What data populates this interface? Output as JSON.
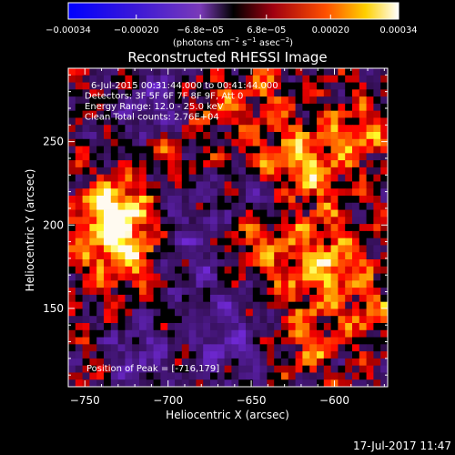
{
  "chart_data": {
    "type": "heatmap",
    "title": "Reconstructed RHESSI Image",
    "xlabel": "Heliocentric X (arcsec)",
    "ylabel": "Heliocentric Y (arcsec)",
    "xlim": [
      -760,
      -568
    ],
    "ylim": [
      103,
      294
    ],
    "x_ticks": [
      -750,
      -700,
      -650,
      -600
    ],
    "y_ticks": [
      150,
      200,
      250
    ],
    "x_tick_labels": [
      "−750",
      "−700",
      "−650",
      "−600"
    ],
    "y_tick_labels": [
      "150",
      "200",
      "250"
    ],
    "colorbar": {
      "range": [
        -0.00034,
        0.00034
      ],
      "ticks": [
        -0.00034,
        -0.0002,
        -6.8e-05,
        6.8e-05,
        0.0002,
        0.00034
      ],
      "tick_labels": [
        "−0.00034",
        "−0.00020",
        "−6.8e−05",
        "6.8e−05",
        "0.00020",
        "0.00034"
      ],
      "label_prefix": "(photons cm",
      "label_exp1": "−2",
      "label_mid": " s",
      "label_exp2": "−1",
      "label_mid2": " asec",
      "label_exp3": "−2",
      "label_suffix": ")"
    },
    "info_lines": [
      "6-Jul-2015 00:31:44.000 to 00:41:44.000",
      "Detectors: 3F 5F 6F 7F 8F 9F, Att 0",
      "Energy Range: 12.0 - 25.0 keV",
      "Clean     Total counts: 2.76E+04"
    ],
    "peak_label": "Position of Peak = [-716,179]",
    "peak_position": [
      -716,
      179
    ],
    "timestamp": "17-Jul-2017 11:47",
    "colors": {
      "low": "#0000ff",
      "mid_neg": "#8040c0",
      "zero": "#000000",
      "mid_pos": "#ff4000",
      "high": "#ffffff"
    }
  }
}
